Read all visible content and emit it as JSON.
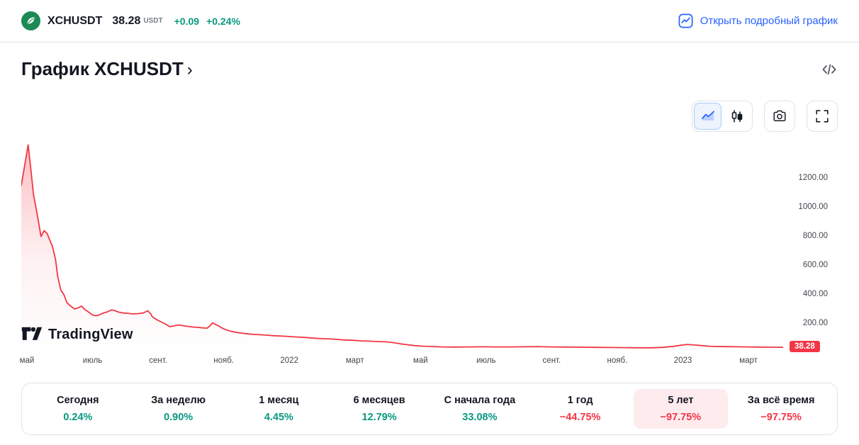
{
  "colors": {
    "text": "#131722",
    "muted": "#787b86",
    "green": "#089981",
    "red": "#F23645",
    "blue": "#2962FF",
    "border": "#e0e3eb",
    "selected_bg": "#fdebee"
  },
  "header": {
    "symbol": "XCHUSDT",
    "price": "38.28",
    "currency": "USDT",
    "change_abs": "+0.09",
    "change_pct": "+0.24%",
    "link_label": "Открыть подробный график"
  },
  "title": {
    "text": "График XCHUSDT",
    "chevron": "›"
  },
  "toolbar": {
    "buttons": [
      "area-chart",
      "candlestick-chart",
      "camera-snapshot",
      "fullscreen"
    ],
    "active": "area-chart"
  },
  "watermark": {
    "label": "TradingView"
  },
  "chart_data": {
    "type": "area",
    "symbol": "XCHUSDT",
    "line_color": "#F23645",
    "last_price": 38.28,
    "last_price_label": "38.28",
    "ylim": [
      0,
      1500
    ],
    "y_ticks": [
      1200,
      1000,
      800,
      600,
      400,
      200
    ],
    "x_ticks": [
      "май",
      "июль",
      "сент.",
      "нояб.",
      "2022",
      "март",
      "май",
      "июль",
      "сент.",
      "нояб.",
      "2023",
      "март"
    ],
    "points": [
      [
        0.0,
        1150
      ],
      [
        0.009,
        1430
      ],
      [
        0.013,
        1240
      ],
      [
        0.016,
        1090
      ],
      [
        0.02,
        980
      ],
      [
        0.026,
        800
      ],
      [
        0.03,
        840
      ],
      [
        0.034,
        820
      ],
      [
        0.037,
        780
      ],
      [
        0.041,
        730
      ],
      [
        0.045,
        640
      ],
      [
        0.048,
        520
      ],
      [
        0.052,
        430
      ],
      [
        0.056,
        400
      ],
      [
        0.06,
        345
      ],
      [
        0.065,
        320
      ],
      [
        0.07,
        302
      ],
      [
        0.075,
        310
      ],
      [
        0.079,
        322
      ],
      [
        0.083,
        300
      ],
      [
        0.088,
        282
      ],
      [
        0.093,
        262
      ],
      [
        0.098,
        255
      ],
      [
        0.103,
        262
      ],
      [
        0.107,
        272
      ],
      [
        0.113,
        282
      ],
      [
        0.119,
        296
      ],
      [
        0.124,
        288
      ],
      [
        0.128,
        280
      ],
      [
        0.134,
        274
      ],
      [
        0.14,
        272
      ],
      [
        0.146,
        268
      ],
      [
        0.153,
        270
      ],
      [
        0.16,
        274
      ],
      [
        0.166,
        290
      ],
      [
        0.17,
        268
      ],
      [
        0.172,
        248
      ],
      [
        0.178,
        228
      ],
      [
        0.184,
        212
      ],
      [
        0.19,
        196
      ],
      [
        0.195,
        180
      ],
      [
        0.201,
        186
      ],
      [
        0.207,
        192
      ],
      [
        0.213,
        186
      ],
      [
        0.219,
        182
      ],
      [
        0.225,
        178
      ],
      [
        0.231,
        176
      ],
      [
        0.238,
        172
      ],
      [
        0.244,
        170
      ],
      [
        0.248,
        188
      ],
      [
        0.251,
        206
      ],
      [
        0.255,
        196
      ],
      [
        0.259,
        186
      ],
      [
        0.263,
        172
      ],
      [
        0.268,
        160
      ],
      [
        0.274,
        150
      ],
      [
        0.281,
        142
      ],
      [
        0.289,
        136
      ],
      [
        0.298,
        130
      ],
      [
        0.309,
        126
      ],
      [
        0.321,
        122
      ],
      [
        0.332,
        118
      ],
      [
        0.344,
        115
      ],
      [
        0.358,
        110
      ],
      [
        0.372,
        106
      ],
      [
        0.385,
        101
      ],
      [
        0.395,
        98
      ],
      [
        0.409,
        95
      ],
      [
        0.423,
        89
      ],
      [
        0.437,
        86
      ],
      [
        0.446,
        83
      ],
      [
        0.456,
        81
      ],
      [
        0.467,
        78
      ],
      [
        0.479,
        76
      ],
      [
        0.489,
        70
      ],
      [
        0.498,
        62
      ],
      [
        0.507,
        56
      ],
      [
        0.516,
        50
      ],
      [
        0.528,
        46
      ],
      [
        0.54,
        44
      ],
      [
        0.553,
        41
      ],
      [
        0.567,
        40
      ],
      [
        0.586,
        41
      ],
      [
        0.605,
        42
      ],
      [
        0.623,
        41
      ],
      [
        0.642,
        41
      ],
      [
        0.66,
        42
      ],
      [
        0.679,
        43
      ],
      [
        0.698,
        41
      ],
      [
        0.716,
        40
      ],
      [
        0.735,
        39
      ],
      [
        0.753,
        38
      ],
      [
        0.772,
        37
      ],
      [
        0.791,
        36
      ],
      [
        0.809,
        35
      ],
      [
        0.828,
        35
      ],
      [
        0.842,
        38
      ],
      [
        0.856,
        45
      ],
      [
        0.865,
        52
      ],
      [
        0.874,
        58
      ],
      [
        0.884,
        54
      ],
      [
        0.893,
        50
      ],
      [
        0.902,
        46
      ],
      [
        0.912,
        44
      ],
      [
        0.926,
        43
      ],
      [
        0.94,
        42
      ],
      [
        0.953,
        41
      ],
      [
        0.967,
        40
      ],
      [
        0.984,
        39
      ],
      [
        1.0,
        38.28
      ]
    ]
  },
  "periods": [
    {
      "label": "Сегодня",
      "value": "0.24%",
      "direction": "up",
      "selected": false
    },
    {
      "label": "За неделю",
      "value": "0.90%",
      "direction": "up",
      "selected": false
    },
    {
      "label": "1 месяц",
      "value": "4.45%",
      "direction": "up",
      "selected": false
    },
    {
      "label": "6 месяцев",
      "value": "12.79%",
      "direction": "up",
      "selected": false
    },
    {
      "label": "С начала года",
      "value": "33.08%",
      "direction": "up",
      "selected": false
    },
    {
      "label": "1 год",
      "value": "−44.75%",
      "direction": "down",
      "selected": false
    },
    {
      "label": "5 лет",
      "value": "−97.75%",
      "direction": "down",
      "selected": true
    },
    {
      "label": "За всё время",
      "value": "−97.75%",
      "direction": "down",
      "selected": false
    }
  ]
}
